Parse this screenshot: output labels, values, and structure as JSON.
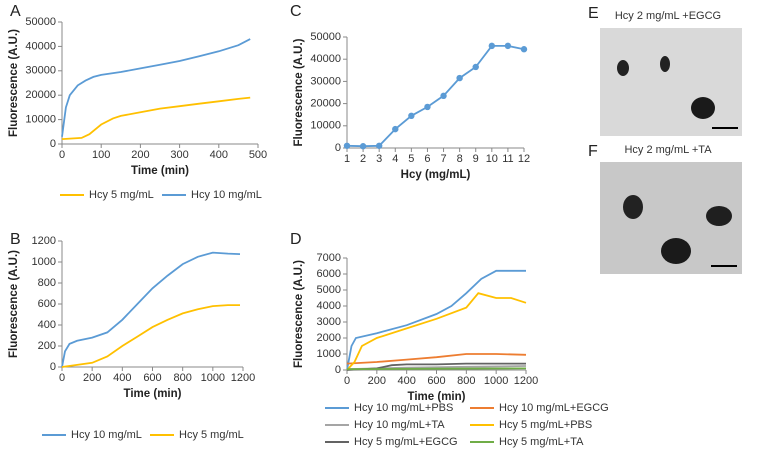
{
  "chart_data": [
    {
      "type": "line",
      "panel_label": "A",
      "x_label": "Time (min)",
      "y_label": "Fluorescence (A.U.)",
      "xlim": [
        0,
        500
      ],
      "xticks": [
        0,
        100,
        200,
        300,
        400,
        500
      ],
      "ylim": [
        0,
        50000
      ],
      "yticks": [
        0,
        10000,
        20000,
        30000,
        40000,
        50000
      ],
      "series": [
        {
          "name": "Hcy 5 mg/mL",
          "color": "#ffc000",
          "x": [
            0,
            50,
            70,
            100,
            130,
            150,
            200,
            250,
            300,
            350,
            400,
            450,
            480
          ],
          "values": [
            2000,
            2500,
            4000,
            8000,
            10500,
            11500,
            13000,
            14500,
            15500,
            16500,
            17500,
            18500,
            19000
          ]
        },
        {
          "name": "Hcy 10 mg/mL",
          "color": "#5b9bd5",
          "x": [
            0,
            10,
            20,
            40,
            60,
            80,
            100,
            150,
            200,
            250,
            300,
            350,
            400,
            450,
            480
          ],
          "values": [
            3000,
            15000,
            20000,
            24000,
            26000,
            27500,
            28300,
            29500,
            31000,
            32500,
            34000,
            36000,
            38000,
            40500,
            43000
          ]
        }
      ]
    },
    {
      "type": "line",
      "panel_label": "B",
      "x_label": "Time (min)",
      "y_label": "Fluorescence (A.U.)",
      "xlim": [
        0,
        1200
      ],
      "xticks": [
        0,
        200,
        400,
        600,
        800,
        1000,
        1200
      ],
      "ylim": [
        0,
        1200
      ],
      "yticks": [
        0,
        200,
        400,
        600,
        800,
        1000,
        1200
      ],
      "series": [
        {
          "name": "Hcy 10 mg/mL",
          "color": "#5b9bd5",
          "x": [
            0,
            20,
            50,
            100,
            200,
            300,
            400,
            500,
            600,
            700,
            800,
            900,
            1000,
            1100,
            1180
          ],
          "values": [
            0,
            150,
            220,
            250,
            280,
            330,
            450,
            600,
            750,
            870,
            980,
            1050,
            1090,
            1080,
            1075
          ]
        },
        {
          "name": "Hcy 5 mg/mL",
          "color": "#ffc000",
          "x": [
            0,
            100,
            200,
            300,
            400,
            500,
            600,
            700,
            800,
            900,
            1000,
            1100,
            1180
          ],
          "values": [
            0,
            20,
            40,
            100,
            200,
            290,
            380,
            450,
            510,
            550,
            580,
            590,
            590
          ]
        }
      ]
    },
    {
      "type": "line",
      "panel_label": "C",
      "x_label": "Hcy (mg/mL)",
      "y_label": "Fluorescence (A.U.)",
      "markers": true,
      "xlim": [
        1,
        12
      ],
      "xticks": [
        1,
        2,
        3,
        4,
        5,
        6,
        7,
        8,
        9,
        10,
        11,
        12
      ],
      "ylim": [
        0,
        50000
      ],
      "yticks": [
        0,
        10000,
        20000,
        30000,
        40000,
        50000
      ],
      "series": [
        {
          "color": "#5b9bd5",
          "x": [
            1,
            2,
            3,
            4,
            5,
            6,
            7,
            8,
            9,
            10,
            11,
            12
          ],
          "values": [
            1000,
            800,
            1000,
            8500,
            14500,
            18500,
            23500,
            31500,
            36500,
            46000,
            46000,
            44500
          ]
        }
      ]
    },
    {
      "type": "line",
      "panel_label": "D",
      "x_label": "Time (min)",
      "y_label": "Fluorescence (A.U.)",
      "xlim": [
        0,
        1200
      ],
      "xticks": [
        0,
        200,
        400,
        600,
        800,
        1000,
        1200
      ],
      "ylim": [
        0,
        7000
      ],
      "yticks": [
        0,
        1000,
        2000,
        3000,
        4000,
        5000,
        6000,
        7000
      ],
      "series": [
        {
          "name": "Hcy 10 mg/mL+PBS",
          "color": "#5b9bd5",
          "x": [
            0,
            30,
            60,
            200,
            400,
            600,
            700,
            800,
            900,
            1000,
            1100,
            1200
          ],
          "values": [
            0,
            1500,
            2000,
            2300,
            2800,
            3500,
            4000,
            4800,
            5700,
            6200,
            6200,
            6200
          ]
        },
        {
          "name": "Hcy 10 mg/mL+EGCG",
          "color": "#ed7d31",
          "x": [
            0,
            200,
            400,
            600,
            800,
            1000,
            1200
          ],
          "values": [
            400,
            500,
            650,
            800,
            1000,
            1000,
            950
          ]
        },
        {
          "name": "Hcy 10 mg/mL+TA",
          "color": "#a5a5a5",
          "x": [
            0,
            400,
            800,
            1200
          ],
          "values": [
            50,
            150,
            200,
            250
          ]
        },
        {
          "name": "Hcy 5 mg/mL+PBS",
          "color": "#ffc000",
          "x": [
            0,
            50,
            100,
            200,
            400,
            600,
            800,
            880,
            1000,
            1100,
            1200
          ],
          "values": [
            0,
            500,
            1500,
            2000,
            2600,
            3200,
            3900,
            4800,
            4500,
            4500,
            4200
          ]
        },
        {
          "name": "Hcy 5 mg/mL+EGCG",
          "color": "#636363",
          "x": [
            0,
            200,
            300,
            400,
            600,
            800,
            1000,
            1200
          ],
          "values": [
            0,
            100,
            300,
            350,
            350,
            400,
            400,
            400
          ]
        },
        {
          "name": "Hcy 5 mg/mL+TA",
          "color": "#70ad47",
          "x": [
            0,
            600,
            1200
          ],
          "values": [
            50,
            80,
            100
          ]
        }
      ]
    }
  ],
  "images": [
    {
      "panel_label": "E",
      "caption": "Hcy 2 mg/mL +EGCG"
    },
    {
      "panel_label": "F",
      "caption": "Hcy 2 mg/mL +TA"
    }
  ]
}
